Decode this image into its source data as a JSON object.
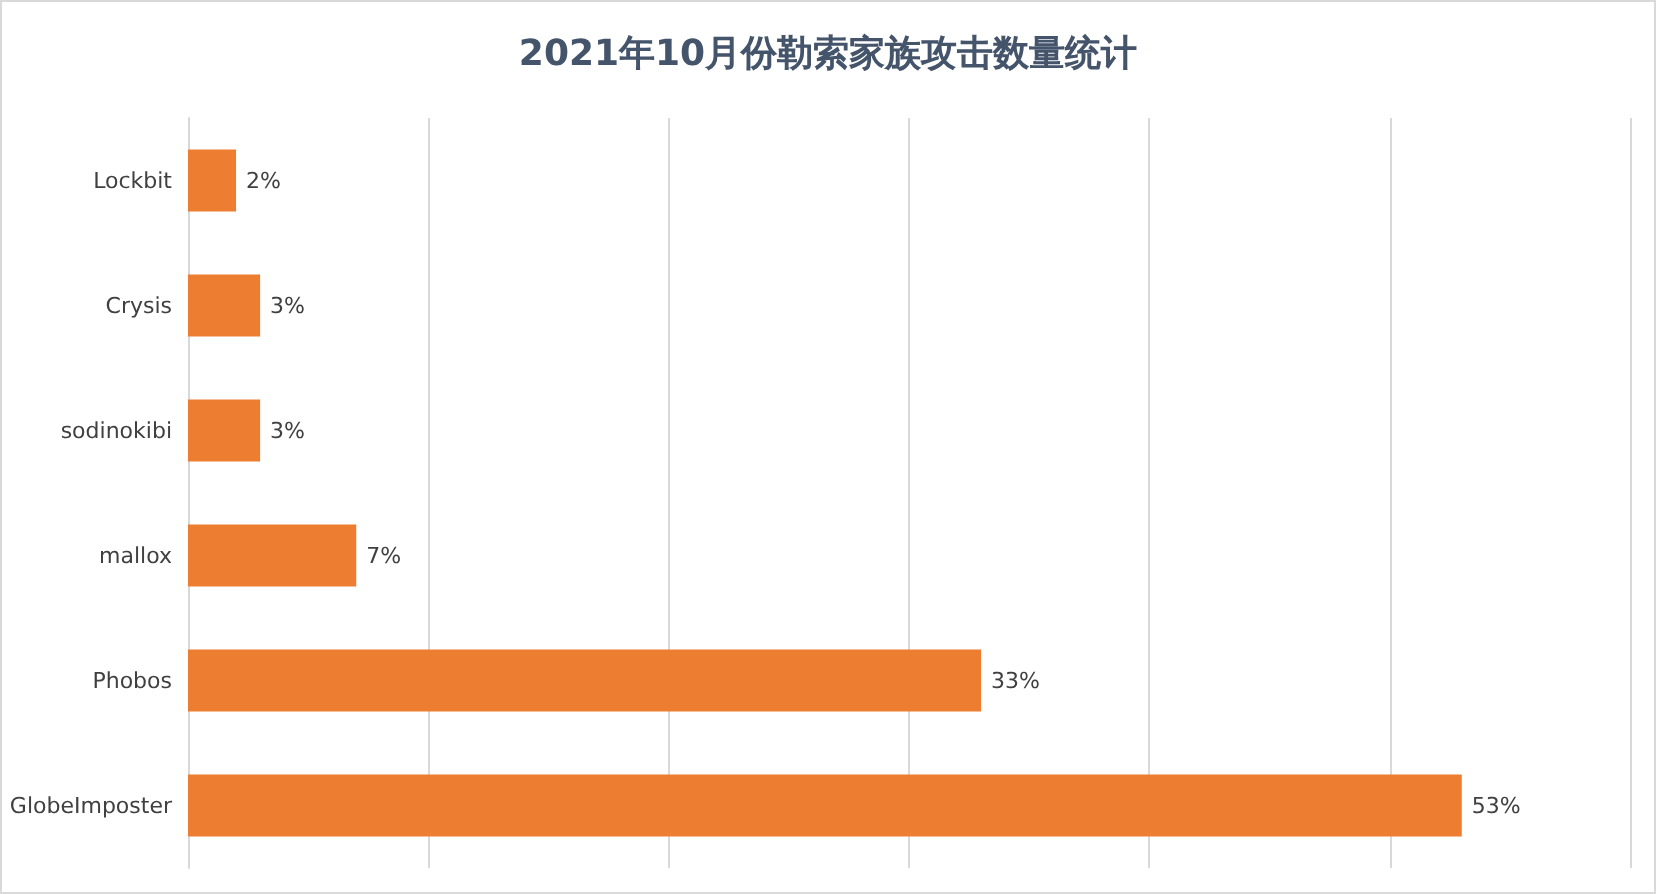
{
  "chart_data": {
    "type": "bar",
    "orientation": "horizontal",
    "title": "2021年10月份勒索家族攻击数量统计",
    "categories": [
      "Lockbit",
      "Crysis",
      "sodinokibi",
      "mallox",
      "Phobos",
      "GlobeImposter"
    ],
    "values": [
      2,
      3,
      3,
      7,
      33,
      53
    ],
    "value_labels": [
      "2%",
      "3%",
      "3%",
      "7%",
      "33%",
      "53%"
    ],
    "color": "#ed7d31",
    "xlim": [
      0,
      60
    ],
    "xticks": [
      {
        "value": 0,
        "label": null
      },
      {
        "value": 10,
        "label": null
      },
      {
        "value": 20,
        "label": null
      },
      {
        "value": 30,
        "label": null
      },
      {
        "value": 40,
        "label": null
      },
      {
        "value": 50,
        "label": null
      },
      {
        "value": 60,
        "label": null
      }
    ],
    "tick_labels": "y",
    "grid": "x"
  }
}
